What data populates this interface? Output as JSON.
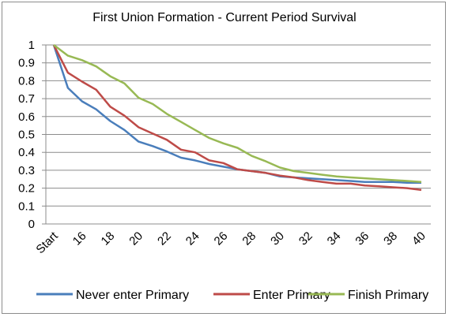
{
  "chart_data": {
    "type": "line",
    "title": "First Union Formation - Current Period Survival",
    "xlabel": "",
    "ylabel": "",
    "ylim": [
      0,
      1
    ],
    "yticks": [
      0,
      0.1,
      0.2,
      0.3,
      0.4,
      0.5,
      0.6,
      0.7,
      0.8,
      0.9,
      1
    ],
    "ytick_labels": [
      "0",
      "0.1",
      "0.2",
      "0.3",
      "0.4",
      "0.5",
      "0.6",
      "0.7",
      "0.8",
      "0.9",
      "1"
    ],
    "x_labels": [
      "Start",
      "16",
      "18",
      "20",
      "22",
      "24",
      "26",
      "28",
      "30",
      "32",
      "34",
      "36",
      "38",
      "40"
    ],
    "x_label_index": [
      0,
      2,
      4,
      6,
      8,
      10,
      12,
      14,
      16,
      18,
      20,
      22,
      24,
      26
    ],
    "grid": "horizontal",
    "legend_position": "bottom",
    "series": [
      {
        "name": "Never enter Primary",
        "color": "#4a7ebb",
        "values": [
          1.0,
          0.76,
          0.685,
          0.64,
          0.575,
          0.525,
          0.46,
          0.435,
          0.405,
          0.37,
          0.355,
          0.335,
          0.32,
          0.305,
          0.295,
          0.285,
          0.265,
          0.26,
          0.255,
          0.25,
          0.245,
          0.24,
          0.235,
          0.235,
          0.235,
          0.23,
          0.23
        ]
      },
      {
        "name": "Enter Primary",
        "color": "#be4b48",
        "values": [
          1.0,
          0.845,
          0.795,
          0.75,
          0.655,
          0.605,
          0.54,
          0.505,
          0.47,
          0.415,
          0.4,
          0.355,
          0.34,
          0.305,
          0.295,
          0.285,
          0.27,
          0.26,
          0.245,
          0.235,
          0.225,
          0.225,
          0.215,
          0.21,
          0.205,
          0.2,
          0.19
        ]
      },
      {
        "name": "Finish Primary",
        "color": "#98b954",
        "values": [
          1.0,
          0.94,
          0.915,
          0.88,
          0.825,
          0.785,
          0.705,
          0.67,
          0.615,
          0.57,
          0.525,
          0.48,
          0.45,
          0.425,
          0.38,
          0.35,
          0.315,
          0.295,
          0.285,
          0.275,
          0.265,
          0.26,
          0.255,
          0.25,
          0.245,
          0.24,
          0.235
        ]
      }
    ]
  }
}
